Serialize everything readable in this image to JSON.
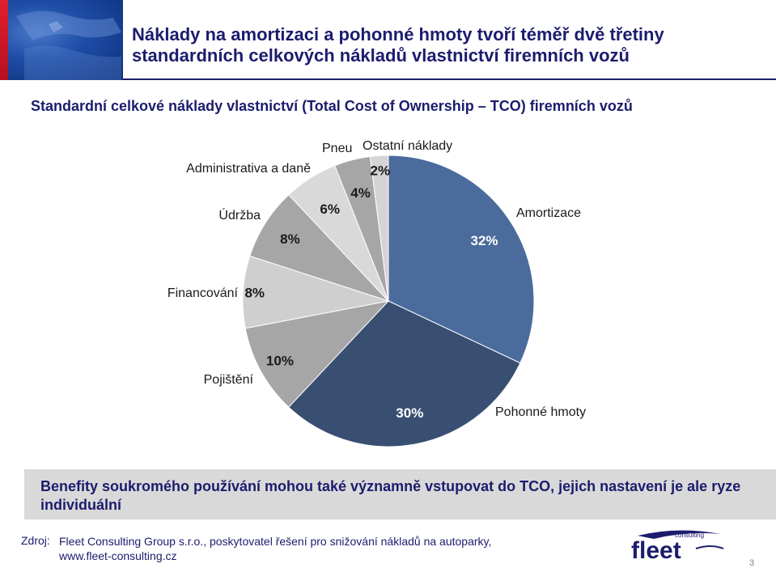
{
  "header": {
    "title": "Náklady na amortizaci a pohonné hmoty tvoří téměř dvě třetiny standardních celkových nákladů vlastnictví firemních vozů"
  },
  "subtitle": "Standardní celkové náklady vlastnictví (Total Cost of Ownership – TCO) firemních vozů",
  "chart_data": {
    "type": "pie",
    "title": "",
    "slices": [
      {
        "label": "Amortizace",
        "value": 32,
        "display": "32%",
        "color": "#4a6b9c"
      },
      {
        "label": "Pohonné hmoty",
        "value": 30,
        "display": "30%",
        "color": "#384f72"
      },
      {
        "label": "Pojištění",
        "value": 10,
        "display": "10%",
        "color": "#a6a6a6"
      },
      {
        "label": "Financování",
        "value": 8,
        "display": "8%",
        "color": "#cfcfcf"
      },
      {
        "label": "Údržba",
        "value": 8,
        "display": "8%",
        "color": "#a6a6a6"
      },
      {
        "label": "Administrativa a daně",
        "value": 6,
        "display": "6%",
        "color": "#d9d9d9"
      },
      {
        "label": "Pneu",
        "value": 4,
        "display": "4%",
        "color": "#a6a6a6"
      },
      {
        "label": "Ostatní náklady",
        "value": 2,
        "display": "2%",
        "color": "#d4d4d4"
      }
    ],
    "start_angle_deg": 0,
    "direction": "clockwise",
    "legend": "none (category labels placed outside slices)"
  },
  "benefit": {
    "text": "Benefity soukromého používání mohou také významně vstupovat do TCO, jejich nastavení je ale ryze individuální"
  },
  "source": {
    "label": "Zdroj:",
    "text": "Fleet Consulting Group s.r.o., poskytovatel řešení pro snižování nákladů na autoparky, www.fleet-consulting.cz"
  },
  "logo": {
    "small_text": "consulting",
    "word": "fleet"
  },
  "page_number": "3"
}
